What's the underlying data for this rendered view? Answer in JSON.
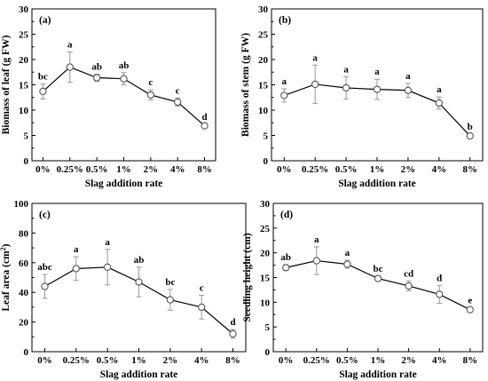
{
  "chart_data": [
    {
      "type": "line",
      "panel": "(a)",
      "xlabel": "Slag addition rate",
      "ylabel": "Biomass of leaf (g FW)",
      "categories": [
        "0%",
        "0.25%",
        "0.5%",
        "1%",
        "2%",
        "4%",
        "8%"
      ],
      "values": [
        13.7,
        18.5,
        16.4,
        16.2,
        13.0,
        11.6,
        6.9
      ],
      "errors": [
        1.5,
        3.0,
        0.7,
        1.2,
        1.0,
        0.8,
        0.3
      ],
      "significance": [
        "bc",
        "a",
        "ab",
        "ab",
        "c",
        "c",
        "d"
      ],
      "ylim": [
        0,
        30
      ],
      "yticks": [
        "0",
        "5",
        "10",
        "15",
        "20",
        "25",
        "30"
      ],
      "grid": false
    },
    {
      "type": "line",
      "panel": "(b)",
      "xlabel": "Slag addition rate",
      "ylabel": "Biomass of stem (g FW)",
      "categories": [
        "0%",
        "0.25%",
        "0.5%",
        "1%",
        "2%",
        "4%",
        "8%"
      ],
      "values": [
        12.9,
        15.1,
        14.4,
        14.1,
        13.9,
        11.4,
        4.9
      ],
      "errors": [
        1.3,
        3.8,
        2.2,
        2.0,
        1.4,
        1.2,
        0.4
      ],
      "significance": [
        "a",
        "a",
        "a",
        "a",
        "a",
        "a",
        "b"
      ],
      "ylim": [
        0,
        30
      ],
      "yticks": [
        "0",
        "5",
        "10",
        "15",
        "20",
        "25",
        "30"
      ],
      "grid": false
    },
    {
      "type": "line",
      "panel": "(c)",
      "xlabel": "Slag addition rate",
      "ylabel": "Leaf area (cm",
      "ylabel_sup": "2",
      "ylabel_end": ")",
      "categories": [
        "0%",
        "0.25%",
        "0.5%",
        "1%",
        "2%",
        "4%",
        "8%"
      ],
      "values": [
        44,
        56,
        57,
        47,
        35,
        30,
        12
      ],
      "errors": [
        8,
        8,
        12,
        10,
        7,
        8,
        3
      ],
      "significance": [
        "abc",
        "a",
        "a",
        "ab",
        "bc",
        "c",
        "d"
      ],
      "ylim": [
        0,
        100
      ],
      "yticks": [
        "0",
        "20",
        "40",
        "60",
        "80",
        "100"
      ],
      "grid": false
    },
    {
      "type": "line",
      "panel": "(d)",
      "xlabel": "Slag addition rate",
      "ylabel": "Seedling height (cm)",
      "categories": [
        "0%",
        "0.25%",
        "0.5%",
        "1%",
        "2%",
        "4%",
        "8%"
      ],
      "values": [
        17.0,
        18.4,
        17.7,
        14.8,
        13.3,
        11.6,
        8.5
      ],
      "errors": [
        0.6,
        2.8,
        0.8,
        0.5,
        1.0,
        1.8,
        0.4
      ],
      "significance": [
        "ab",
        "a",
        "a",
        "bc",
        "cd",
        "d",
        "e"
      ],
      "ylim": [
        0,
        30
      ],
      "yticks": [
        "0",
        "5",
        "10",
        "15",
        "20",
        "25",
        "30"
      ],
      "grid": false
    }
  ]
}
